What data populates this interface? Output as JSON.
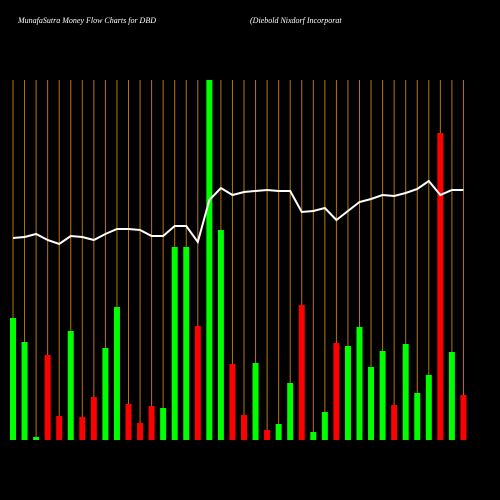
{
  "chart_data": {
    "type": "bar",
    "title": "MunafaSutra  Money Flow  Charts for DBD",
    "subtitle": "(Diebold Nixdorf  Incorporat",
    "ylim": [
      0,
      360
    ],
    "bar_colors": {
      "up": "#00ff00",
      "down": "#ff0000"
    },
    "line_color": "#ffffff",
    "gridline_color": "#b8740f",
    "background": "#000000",
    "series": [
      {
        "name": null,
        "values": [
          122,
          98,
          3,
          85,
          24,
          109,
          23,
          43,
          92,
          133,
          36,
          17,
          34,
          32,
          193,
          193,
          114,
          360,
          210,
          76,
          25,
          77,
          10,
          16,
          57,
          135,
          8,
          28,
          97,
          94,
          113,
          73,
          89,
          35,
          96,
          47,
          65,
          307,
          88,
          45
        ],
        "directions": [
          "up",
          "up",
          "up",
          "down",
          "down",
          "up",
          "down",
          "down",
          "up",
          "up",
          "down",
          "down",
          "down",
          "up",
          "up",
          "up",
          "down",
          "up",
          "up",
          "down",
          "down",
          "up",
          "down",
          "up",
          "up",
          "down",
          "up",
          "up",
          "down",
          "up",
          "up",
          "up",
          "up",
          "down",
          "up",
          "up",
          "up",
          "down",
          "up",
          "down"
        ]
      },
      {
        "name": null,
        "type": "line",
        "values": [
          202,
          203,
          206,
          200,
          196,
          204,
          203,
          200,
          206,
          211,
          211,
          210,
          204,
          204,
          214,
          214,
          198,
          240,
          252,
          245,
          248,
          249,
          250,
          249,
          249,
          228,
          229,
          232,
          220,
          229,
          238,
          241,
          245,
          244,
          247,
          251,
          259,
          245,
          250,
          250
        ]
      }
    ]
  }
}
